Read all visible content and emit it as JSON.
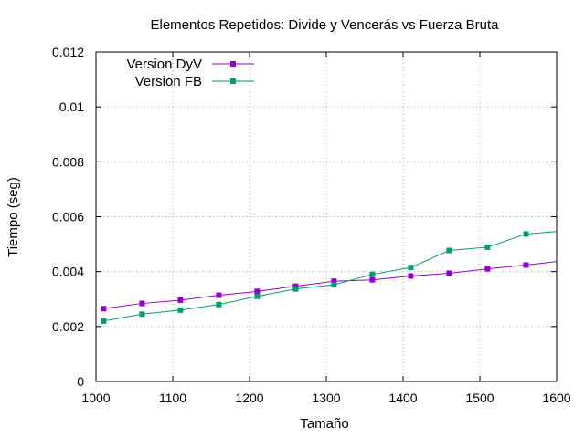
{
  "chart_data": {
    "type": "line",
    "title": "Elementos Repetidos: Divide y Vencerás vs Fuerza Bruta",
    "xlabel": "Tamaño",
    "ylabel": "Tiempo (seg)",
    "xlim": [
      1000,
      1600
    ],
    "ylim": [
      0,
      0.012
    ],
    "x_ticks": [
      1000,
      1100,
      1200,
      1300,
      1400,
      1500,
      1600
    ],
    "x_tick_labels": [
      "1000",
      "1100",
      "1200",
      "1300",
      "1400",
      "1500",
      "1600"
    ],
    "y_ticks": [
      0,
      0.002,
      0.004,
      0.006,
      0.008,
      0.01,
      0.012
    ],
    "y_tick_labels": [
      "0",
      "0.002",
      "0.004",
      "0.006",
      "0.008",
      "0.01",
      "0.012"
    ],
    "grid": true,
    "legend_position": "top-left",
    "series": [
      {
        "name": "Version DyV",
        "color": "#9400d3",
        "marker": "square",
        "x": [
          1010,
          1060,
          1110,
          1160,
          1210,
          1260,
          1310,
          1360,
          1410,
          1460,
          1510,
          1560,
          1610
        ],
        "y": [
          0.00265,
          0.00284,
          0.00296,
          0.00314,
          0.00328,
          0.00347,
          0.00365,
          0.0037,
          0.00384,
          0.00394,
          0.0041,
          0.00424,
          0.0044
        ]
      },
      {
        "name": "Version FB",
        "color": "#009e73",
        "marker": "square",
        "x": [
          1010,
          1060,
          1110,
          1160,
          1210,
          1260,
          1310,
          1360,
          1410,
          1460,
          1510,
          1560,
          1610
        ],
        "y": [
          0.0022,
          0.00245,
          0.0026,
          0.0028,
          0.0031,
          0.00337,
          0.00352,
          0.0039,
          0.00415,
          0.00477,
          0.00489,
          0.00537,
          0.00548
        ]
      }
    ]
  }
}
